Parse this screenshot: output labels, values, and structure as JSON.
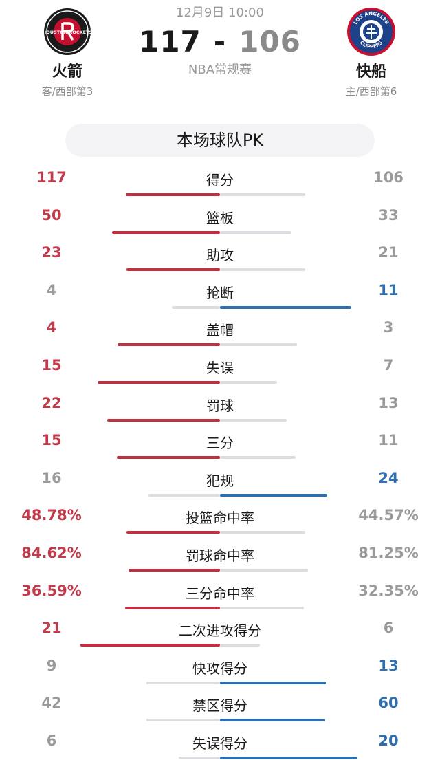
{
  "header": {
    "date": "12月9日 10:00",
    "away_score": "117",
    "dash": "-",
    "home_score": "106",
    "league": "NBA常规赛",
    "away": {
      "name": "火箭",
      "sub": "客/西部第3",
      "logo_text": "HOUSTON ROCKETS",
      "logo_icon": "rockets-logo"
    },
    "home": {
      "name": "快船",
      "sub": "主/西部第6",
      "logo_top": "LOS ANGELES",
      "logo_bottom": "CLIPPERS",
      "logo_icon": "clippers-logo"
    }
  },
  "pk_title": "本场球队PK",
  "colors": {
    "away": "#c0303f",
    "home": "#2d6fb0",
    "neutral": "#dcdde1"
  },
  "stats": [
    {
      "label": "得分",
      "away": "117",
      "home": "106",
      "away_share": 0.525,
      "leader": "away"
    },
    {
      "label": "篮板",
      "away": "50",
      "home": "33",
      "away_share": 0.602,
      "leader": "away"
    },
    {
      "label": "助攻",
      "away": "23",
      "home": "21",
      "away_share": 0.523,
      "leader": "away"
    },
    {
      "label": "抢断",
      "away": "4",
      "home": "11",
      "away_share": 0.267,
      "leader": "home"
    },
    {
      "label": "盖帽",
      "away": "4",
      "home": "3",
      "away_share": 0.571,
      "leader": "away"
    },
    {
      "label": "失误",
      "away": "15",
      "home": "7",
      "away_share": 0.682,
      "leader": "away"
    },
    {
      "label": "罚球",
      "away": "22",
      "home": "13",
      "away_share": 0.629,
      "leader": "away"
    },
    {
      "label": "三分",
      "away": "15",
      "home": "11",
      "away_share": 0.577,
      "leader": "away"
    },
    {
      "label": "犯规",
      "away": "16",
      "home": "24",
      "away_share": 0.4,
      "leader": "home"
    },
    {
      "label": "投篮命中率",
      "away": "48.78%",
      "home": "44.57%",
      "away_share": 0.523,
      "leader": "away"
    },
    {
      "label": "罚球命中率",
      "away": "84.62%",
      "home": "81.25%",
      "away_share": 0.51,
      "leader": "away"
    },
    {
      "label": "三分命中率",
      "away": "36.59%",
      "home": "32.35%",
      "away_share": 0.531,
      "leader": "away"
    },
    {
      "label": "二次进攻得分",
      "away": "21",
      "home": "6",
      "away_share": 0.778,
      "leader": "away"
    },
    {
      "label": "快攻得分",
      "away": "9",
      "home": "13",
      "away_share": 0.409,
      "leader": "home"
    },
    {
      "label": "禁区得分",
      "away": "42",
      "home": "60",
      "away_share": 0.412,
      "leader": "home"
    },
    {
      "label": "失误得分",
      "away": "6",
      "home": "20",
      "away_share": 0.231,
      "leader": "home"
    }
  ]
}
